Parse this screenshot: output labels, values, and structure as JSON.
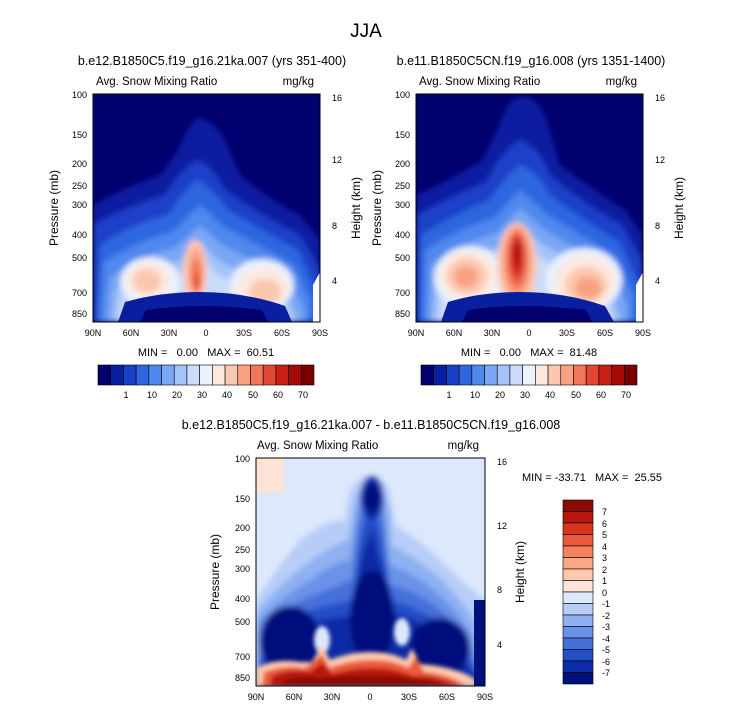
{
  "figure_title": "JJA",
  "chart_data": [
    {
      "type": "heatmap",
      "title": "b.e12.B1850C5.f19_g16.21ka.007 (yrs 351-400)",
      "left_label": "Avg. Snow Mixing Ratio",
      "right_label": "mg/kg",
      "xlabel": "",
      "ylabel": "Pressure (mb)",
      "ylabel_right": "Height (km)",
      "x_ticks": [
        "90N",
        "60N",
        "30N",
        "0",
        "30S",
        "60S",
        "90S"
      ],
      "y_ticks": [
        "100",
        "150",
        "200",
        "250",
        "300",
        "400",
        "500",
        "700",
        "850"
      ],
      "y_right_ticks": [
        "4",
        "8",
        "12",
        "16"
      ],
      "ylim": [
        100,
        1000
      ],
      "stats": "MIN =   0.00   MAX =  60.51",
      "levels": [
        "1",
        "10",
        "20",
        "30",
        "40",
        "50",
        "60",
        "70"
      ],
      "colors": [
        "#00006e",
        "#0a1fa0",
        "#1b40c8",
        "#2f66e0",
        "#5088ee",
        "#7aa6f4",
        "#a4c3f8",
        "#cadbfb",
        "#ebf1fd",
        "#fde8de",
        "#fcc7af",
        "#f9a183",
        "#f27758",
        "#e24733",
        "#c81e16",
        "#a40b07",
        "#7a0000"
      ],
      "max": 60.51
    },
    {
      "type": "heatmap",
      "title": "b.e11.B1850C5CN.f19_g16.008 (yrs 1351-1400)",
      "left_label": "Avg. Snow Mixing Ratio",
      "right_label": "mg/kg",
      "xlabel": "",
      "ylabel": "Pressure (mb)",
      "ylabel_right": "Height (km)",
      "x_ticks": [
        "90N",
        "60N",
        "30N",
        "0",
        "30S",
        "60S",
        "90S"
      ],
      "y_ticks": [
        "100",
        "150",
        "200",
        "250",
        "300",
        "400",
        "500",
        "700",
        "850"
      ],
      "y_right_ticks": [
        "4",
        "8",
        "12",
        "16"
      ],
      "ylim": [
        100,
        1000
      ],
      "stats": "MIN =   0.00   MAX =  81.48",
      "levels": [
        "1",
        "10",
        "20",
        "30",
        "40",
        "50",
        "60",
        "70"
      ],
      "colors": [
        "#00006e",
        "#0a1fa0",
        "#1b40c8",
        "#2f66e0",
        "#5088ee",
        "#7aa6f4",
        "#a4c3f8",
        "#cadbfb",
        "#ebf1fd",
        "#fde8de",
        "#fcc7af",
        "#f9a183",
        "#f27758",
        "#e24733",
        "#c81e16",
        "#a40b07",
        "#7a0000"
      ],
      "max": 81.48
    },
    {
      "type": "heatmap",
      "title": "b.e12.B1850C5.f19_g16.21ka.007 - b.e11.B1850C5CN.f19_g16.008",
      "left_label": "Avg. Snow Mixing Ratio",
      "right_label": "mg/kg",
      "xlabel": "",
      "ylabel": "Pressure (mb)",
      "ylabel_right": "Height (km)",
      "x_ticks": [
        "90N",
        "60N",
        "30N",
        "0",
        "30S",
        "60S",
        "90S"
      ],
      "y_ticks": [
        "100",
        "150",
        "200",
        "250",
        "300",
        "400",
        "500",
        "700",
        "850"
      ],
      "y_right_ticks": [
        "4",
        "8",
        "12",
        "16"
      ],
      "ylim": [
        100,
        1000
      ],
      "stats": "MIN = -33.71   MAX =  25.55",
      "levels": [
        "7",
        "6",
        "5",
        "4",
        "3",
        "2",
        "1",
        "0",
        "-1",
        "-2",
        "-3",
        "-4",
        "-5",
        "-6",
        "-7"
      ],
      "colors": [
        "#8b0a05",
        "#b8170d",
        "#d8351f",
        "#ec5a3a",
        "#f5815d",
        "#f9a886",
        "#fcc9ad",
        "#fde4d6",
        "#dde8fc",
        "#b7cdf8",
        "#8fb0f1",
        "#6a92e8",
        "#4570da",
        "#244ec6",
        "#0e2ca6",
        "#00117c"
      ],
      "range": [
        -33.71,
        25.55
      ]
    }
  ]
}
